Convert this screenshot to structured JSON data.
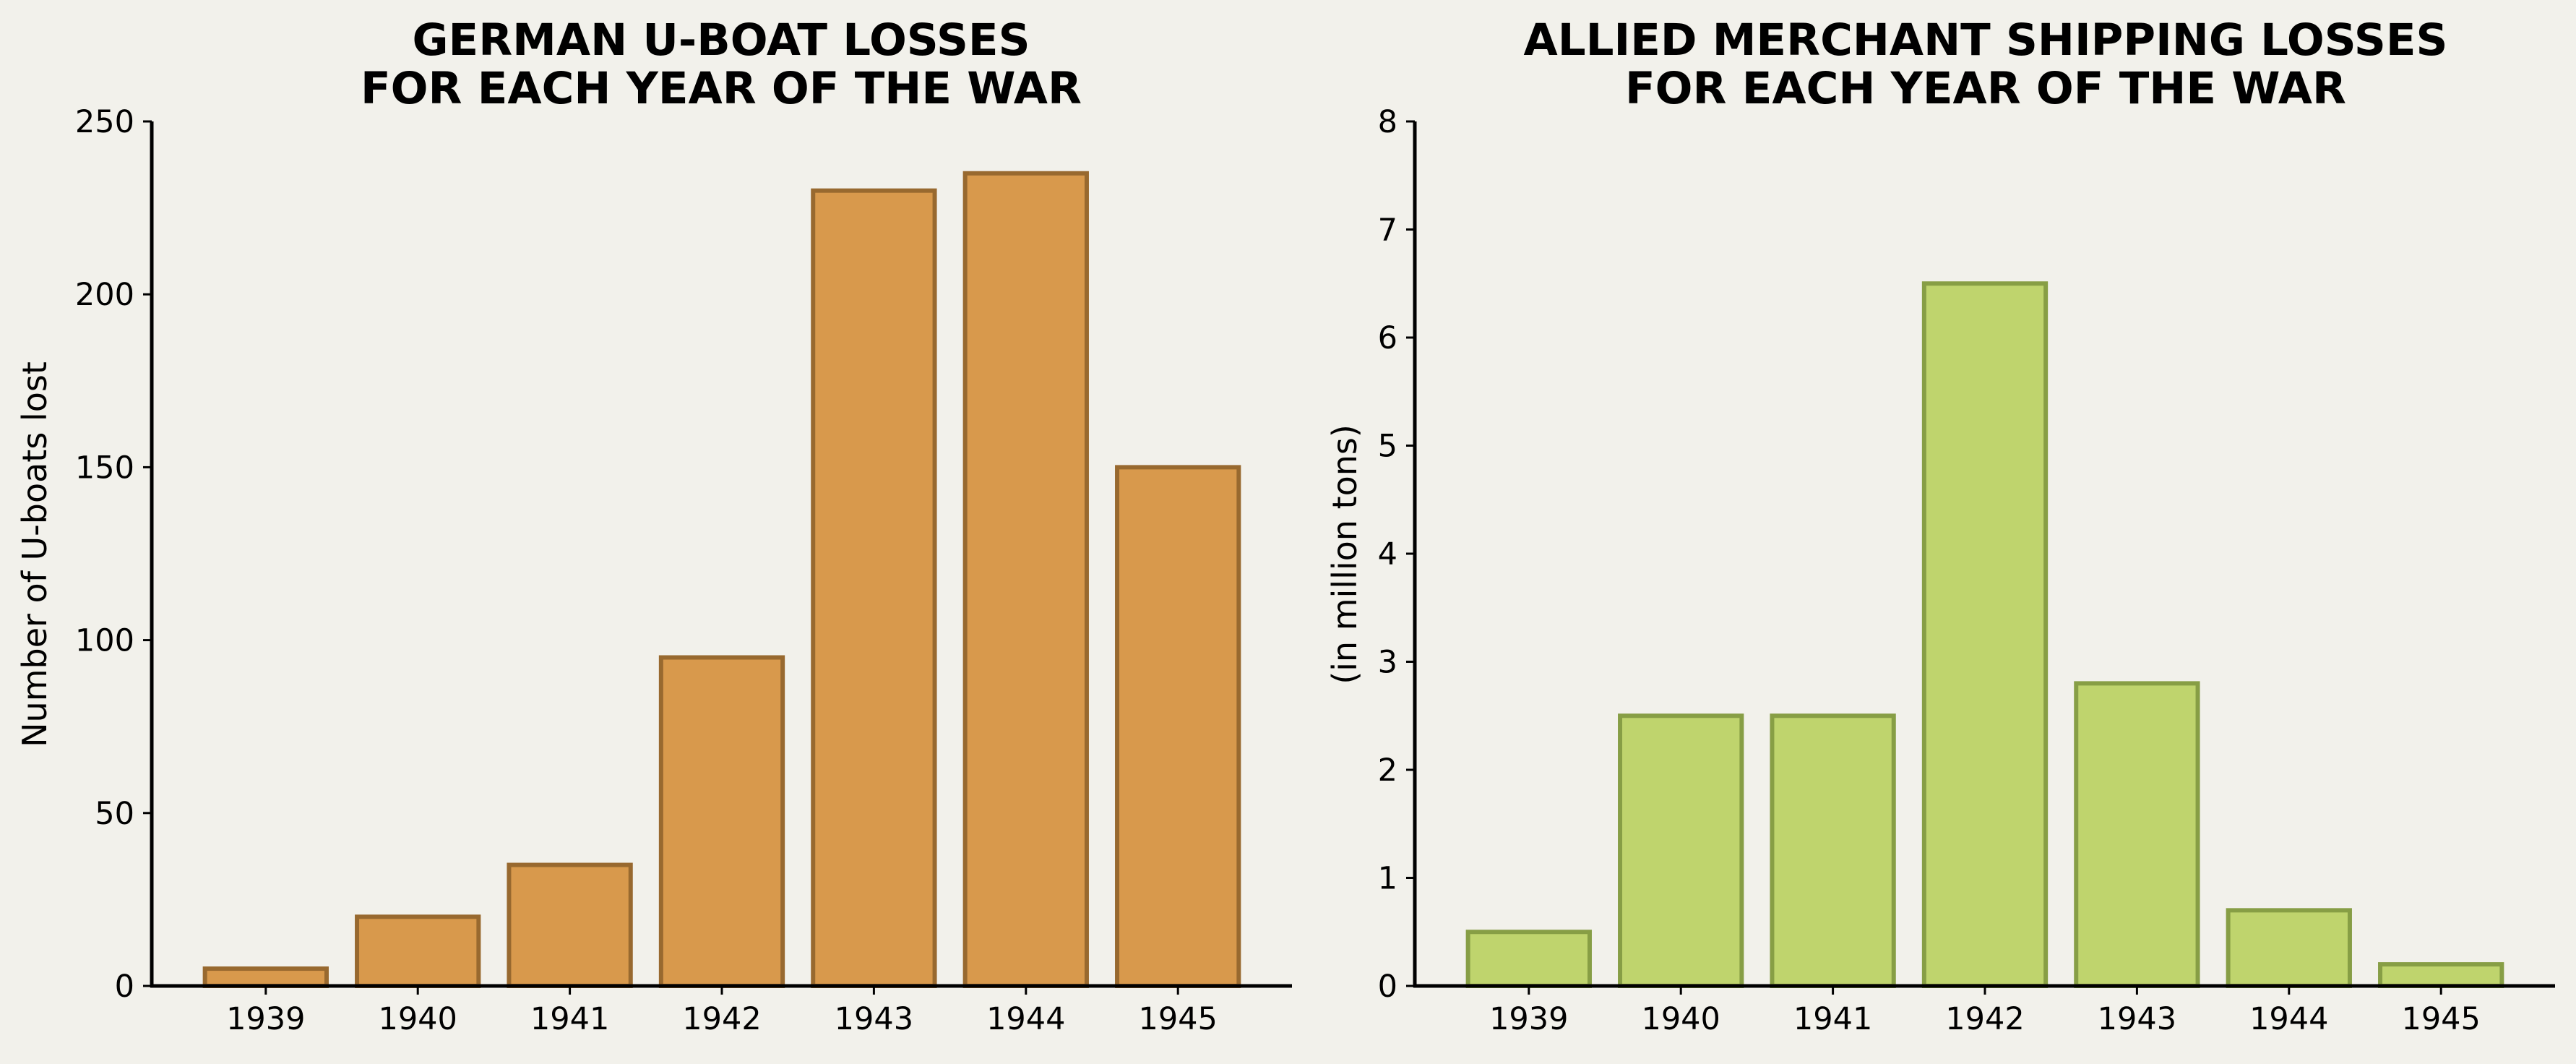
{
  "background": "#f2f1eb",
  "chart_data": [
    {
      "type": "bar",
      "title_lines": [
        "GERMAN U-BOAT LOSSES",
        "FOR EACH YEAR OF THE WAR"
      ],
      "xlabel": "",
      "ylabel": "Number of U-boats lost",
      "categories": [
        "1939",
        "1940",
        "1941",
        "1942",
        "1943",
        "1944",
        "1945"
      ],
      "values": [
        5,
        20,
        35,
        95,
        230,
        235,
        150
      ],
      "ylim": [
        0,
        250
      ],
      "yticks": [
        "0",
        "50",
        "100",
        "150",
        "200",
        "250"
      ],
      "grid": false,
      "bar_color": "#d8994c",
      "edge_color": "#98692f"
    },
    {
      "type": "bar",
      "title_lines": [
        "ALLIED MERCHANT SHIPPING LOSSES",
        "FOR EACH YEAR OF THE WAR"
      ],
      "xlabel": "",
      "ylabel": "(in million tons)",
      "categories": [
        "1939",
        "1940",
        "1941",
        "1942",
        "1943",
        "1944",
        "1945"
      ],
      "values": [
        0.5,
        2.5,
        2.5,
        6.5,
        2.8,
        0.7,
        0.2
      ],
      "ylim": [
        0,
        8
      ],
      "yticks": [
        "0",
        "1",
        "2",
        "3",
        "4",
        "5",
        "6",
        "7",
        "8"
      ],
      "grid": false,
      "bar_color": "#bfd46d",
      "edge_color": "#879e45"
    }
  ]
}
